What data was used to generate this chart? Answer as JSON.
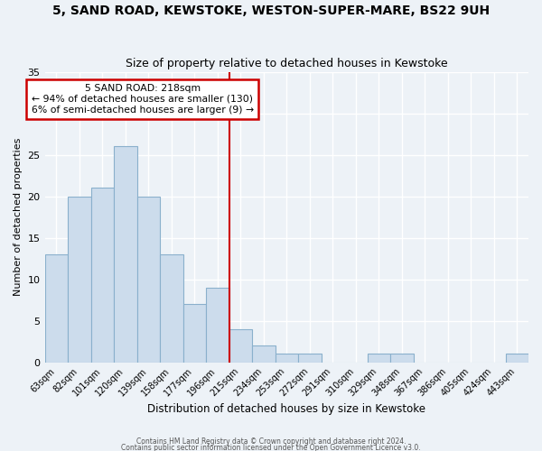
{
  "title": "5, SAND ROAD, KEWSTOKE, WESTON-SUPER-MARE, BS22 9UH",
  "subtitle": "Size of property relative to detached houses in Kewstoke",
  "xlabel": "Distribution of detached houses by size in Kewstoke",
  "ylabel": "Number of detached properties",
  "bin_labels": [
    "63sqm",
    "82sqm",
    "101sqm",
    "120sqm",
    "139sqm",
    "158sqm",
    "177sqm",
    "196sqm",
    "215sqm",
    "234sqm",
    "253sqm",
    "272sqm",
    "291sqm",
    "310sqm",
    "329sqm",
    "348sqm",
    "367sqm",
    "386sqm",
    "405sqm",
    "424sqm",
    "443sqm"
  ],
  "bar_values": [
    13,
    20,
    21,
    26,
    20,
    13,
    7,
    9,
    4,
    2,
    1,
    1,
    0,
    0,
    1,
    1,
    0,
    0,
    0,
    0,
    1
  ],
  "bar_color": "#ccdcec",
  "bar_edgecolor": "#8ab0cc",
  "vline_color": "#cc0000",
  "vline_index": 7.5,
  "annotation_title": "5 SAND ROAD: 218sqm",
  "annotation_line1": "← 94% of detached houses are smaller (130)",
  "annotation_line2": "6% of semi-detached houses are larger (9) →",
  "annotation_box_edgecolor": "#cc0000",
  "ylim": [
    0,
    35
  ],
  "yticks": [
    0,
    5,
    10,
    15,
    20,
    25,
    30,
    35
  ],
  "footer1": "Contains HM Land Registry data © Crown copyright and database right 2024.",
  "footer2": "Contains public sector information licensed under the Open Government Licence v3.0.",
  "background_color": "#edf2f7",
  "grid_color": "#ffffff"
}
